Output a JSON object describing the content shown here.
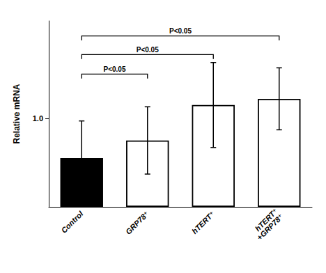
{
  "chart_data": {
    "type": "bar",
    "categories": [
      "Control",
      "GRP78⁺",
      "hTERT⁺",
      "hTERT⁺\n+GRP78⁺"
    ],
    "values": [
      0.55,
      0.75,
      1.15,
      1.22
    ],
    "errors": [
      0.42,
      0.38,
      0.48,
      0.35
    ],
    "colors": [
      "#000000",
      "#ffffff",
      "#ffffff",
      "#ffffff"
    ],
    "ylabel": "Relative mRNA",
    "ylim": [
      0,
      2.1
    ],
    "yticks": [
      {
        "value": 1.0,
        "label": "1.0"
      }
    ],
    "grid": false,
    "annotations": [
      {
        "from": "Control",
        "to": "GRP78⁺",
        "y": 1.5,
        "text": "P<0.05"
      },
      {
        "from": "Control",
        "to": "hTERT⁺",
        "y": 1.72,
        "text": "P<0.05"
      },
      {
        "from": "Control",
        "to": "hTERT⁺\n+GRP78⁺",
        "y": 1.93,
        "text": "P<0.05"
      }
    ]
  }
}
